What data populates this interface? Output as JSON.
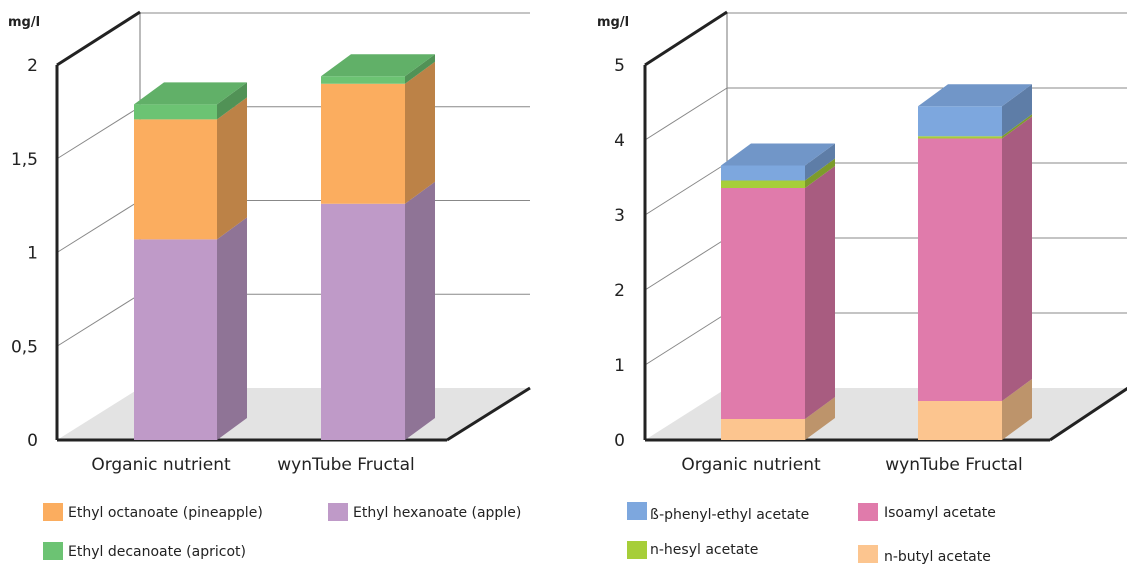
{
  "chart_data": [
    {
      "type": "bar",
      "stacked": true,
      "three_d": true,
      "unit": "mg/l",
      "categories": [
        "Organic nutrient",
        "wynTube Fructal"
      ],
      "ylim": [
        0,
        2
      ],
      "yticks": [
        "0",
        "0,5",
        "1",
        "1,5",
        "2"
      ],
      "grid": true,
      "legend_position": "bottom",
      "series": [
        {
          "name": "Ethyl hexanoate (apple)",
          "values": [
            1.07,
            1.26
          ],
          "color": "#bf9ac8"
        },
        {
          "name": "Ethyl octanoate (pineapple)",
          "values": [
            0.64,
            0.64
          ],
          "color": "#fbad5f"
        },
        {
          "name": "Ethyl decanoate (apricot)",
          "values": [
            0.08,
            0.04
          ],
          "color": "#6cc373"
        }
      ]
    },
    {
      "type": "bar",
      "stacked": true,
      "three_d": true,
      "unit": "mg/l",
      "categories": [
        "Organic nutrient",
        "wynTube Fructal"
      ],
      "ylim": [
        0,
        5
      ],
      "yticks": [
        "0",
        "1",
        "2",
        "3",
        "4",
        "5"
      ],
      "grid": true,
      "legend_position": "bottom",
      "series": [
        {
          "name": "n-butyl acetate",
          "values": [
            0.28,
            0.52
          ],
          "color": "#fcc58f"
        },
        {
          "name": "Isoamyl acetate",
          "values": [
            3.08,
            3.5
          ],
          "color": "#e07bab"
        },
        {
          "name": "n-hesyl acetate",
          "values": [
            0.1,
            0.03
          ],
          "color": "#a6ce39"
        },
        {
          "name": "ß-phenyl-ethyl acetate",
          "values": [
            0.2,
            0.4
          ],
          "color": "#7da7de"
        }
      ]
    }
  ],
  "legends": [
    [
      "Ethyl octanoate (pineapple)",
      "Ethyl hexanoate (apple)",
      "Ethyl decanoate (apricot)"
    ],
    [
      "ß-phenyl-ethyl acetate",
      "Isoamyl acetate",
      "n-hesyl acetate",
      "n-butyl acetate"
    ]
  ]
}
